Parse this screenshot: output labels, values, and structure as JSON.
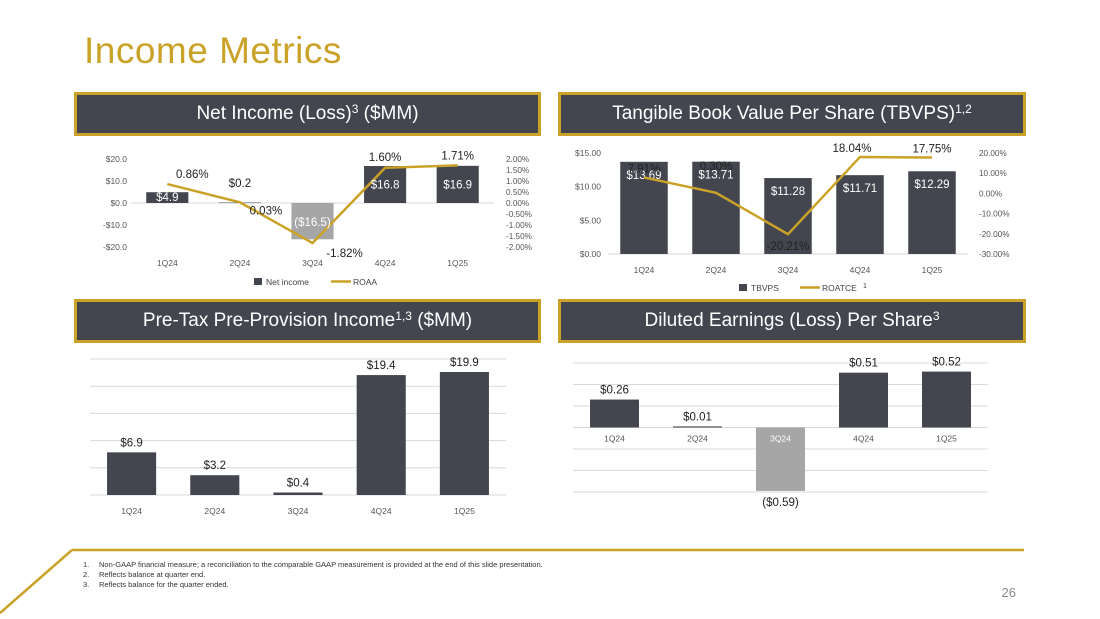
{
  "page": {
    "title": "Income Metrics",
    "page_number": "26",
    "accent_color": "#C9A227",
    "bar_color": "#43464F",
    "neg_bar_color": "#A6A6A6"
  },
  "headers": {
    "net_income": {
      "text": "Net Income (Loss)",
      "sup": "3",
      "suffix": " ($MM)"
    },
    "tbvps": {
      "text": "Tangible Book Value Per Share (TBVPS)",
      "sup": "1,2",
      "suffix": ""
    },
    "pretax": {
      "text": "Pre-Tax Pre-Provision Income",
      "sup": "1,3",
      "suffix": " ($MM)"
    },
    "eps": {
      "text": "Diluted Earnings (Loss) Per Share",
      "sup": "3",
      "suffix": ""
    }
  },
  "footnotes": [
    {
      "num": "1.",
      "text": "Non-GAAP financial measure; a reconciliation to the comparable GAAP measurement is provided at the end of this slide presentation."
    },
    {
      "num": "2.",
      "text": "Reflects balance at quarter end."
    },
    {
      "num": "3.",
      "text": "Reflects balance for the quarter ended."
    }
  ],
  "chart_data": [
    {
      "id": "net_income",
      "type": "bar",
      "categories": [
        "1Q24",
        "2Q24",
        "3Q24",
        "4Q24",
        "1Q25"
      ],
      "series": [
        {
          "name": "Net income",
          "values": [
            4.9,
            0.2,
            -16.5,
            16.8,
            16.9
          ],
          "labels": [
            "$4.9",
            "$0.2",
            "($16.5)",
            "$16.8",
            "$16.9"
          ]
        },
        {
          "name": "ROAA",
          "type": "line",
          "axis": "secondary",
          "values": [
            0.86,
            0.03,
            -1.82,
            1.6,
            1.71
          ],
          "labels": [
            "0.86%",
            "0.03%",
            "-1.82%",
            "1.60%",
            "1.71%"
          ]
        }
      ],
      "ylim": [
        -20,
        20
      ],
      "yticks": [
        "$20.0",
        "$10.0",
        "$0.0",
        "-$10.0",
        "-$20.0"
      ],
      "y2lim": [
        -2.0,
        2.0
      ],
      "y2ticks": [
        "2.00%",
        "1.50%",
        "1.00%",
        "0.50%",
        "0.00%",
        "-0.50%",
        "-1.00%",
        "-1.50%",
        "-2.00%"
      ],
      "legend": [
        "Net income",
        "ROAA"
      ]
    },
    {
      "id": "tbvps",
      "type": "bar",
      "categories": [
        "1Q24",
        "2Q24",
        "3Q24",
        "4Q24",
        "1Q25"
      ],
      "series": [
        {
          "name": "TBVPS",
          "values": [
            13.69,
            13.71,
            11.28,
            11.71,
            12.29
          ],
          "labels": [
            "$13.69",
            "$13.71",
            "$11.28",
            "$11.71",
            "$12.29"
          ]
        },
        {
          "name": "ROATCE",
          "type": "line",
          "axis": "secondary",
          "values": [
            7.91,
            0.3,
            -20.21,
            18.04,
            17.75
          ],
          "labels": [
            "7.91%",
            "0.30%",
            "-20.21%",
            "18.04%",
            "17.75%"
          ]
        }
      ],
      "ylim": [
        0,
        15
      ],
      "yticks": [
        "$15.00",
        "$10.00",
        "$5.00",
        "$0.00"
      ],
      "y2lim": [
        -30,
        20
      ],
      "y2ticks": [
        "20.00%",
        "10.00%",
        "0.00%",
        "-10.00%",
        "-20.00%",
        "-30.00%"
      ],
      "legend": [
        "TBVPS",
        "ROATCE",
        "1"
      ]
    },
    {
      "id": "pretax",
      "type": "bar",
      "categories": [
        "1Q24",
        "2Q24",
        "3Q24",
        "4Q24",
        "1Q25"
      ],
      "series": [
        {
          "name": "Pre-Tax Pre-Provision Income",
          "values": [
            6.9,
            3.2,
            0.4,
            19.4,
            19.9
          ],
          "labels": [
            "$6.9",
            "$3.2",
            "$0.4",
            "$19.4",
            "$19.9"
          ]
        }
      ],
      "ylim": [
        0,
        22
      ],
      "grid": true
    },
    {
      "id": "eps",
      "type": "bar",
      "categories": [
        "1Q24",
        "2Q24",
        "3Q24",
        "4Q24",
        "1Q25"
      ],
      "series": [
        {
          "name": "Diluted EPS",
          "values": [
            0.26,
            0.01,
            -0.59,
            0.51,
            0.52
          ],
          "labels": [
            "$0.26",
            "$0.01",
            "($0.59)",
            "$0.51",
            "$0.52"
          ]
        }
      ],
      "ylim": [
        -0.6,
        0.6
      ],
      "grid": true
    }
  ]
}
